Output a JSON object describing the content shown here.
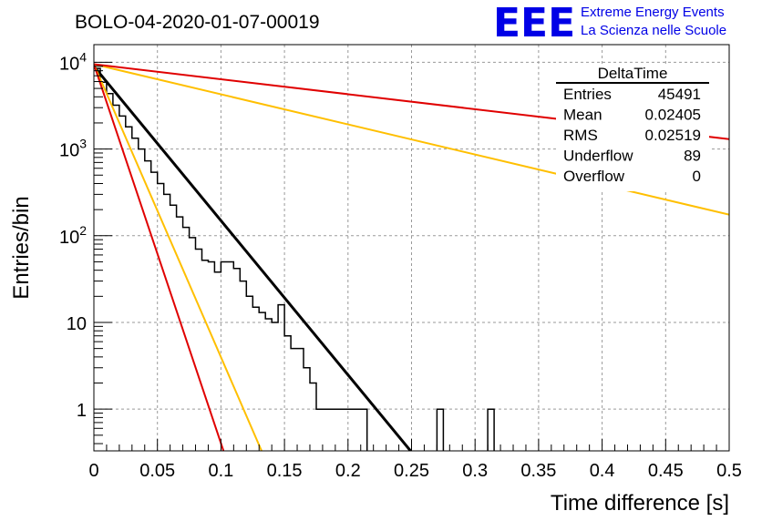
{
  "title": "BOLO-04-2020-01-07-00019",
  "logo": {
    "mark": "EEE",
    "line1": "Extreme Energy Events",
    "line2": "La Scienza nelle Scuole",
    "color": "#0000e6"
  },
  "stats": {
    "name": "DeltaTime",
    "rows": [
      {
        "label": "Entries",
        "value": "45491"
      },
      {
        "label": "Mean",
        "value": "0.02405"
      },
      {
        "label": "RMS",
        "value": "0.02519"
      },
      {
        "label": "Underflow",
        "value": "89"
      },
      {
        "label": "Overflow",
        "value": "0"
      }
    ]
  },
  "chart_data": {
    "type": "line",
    "title": "BOLO-04-2020-01-07-00019",
    "xlabel": "Time difference [s]",
    "ylabel": "Entries/bin",
    "xlim": [
      0,
      0.5
    ],
    "ylim": [
      0.33,
      16000
    ],
    "yscale": "log",
    "grid": true,
    "xticks": [
      {
        "v": 0,
        "label": "0"
      },
      {
        "v": 0.05,
        "label": "0.05"
      },
      {
        "v": 0.1,
        "label": "0.1"
      },
      {
        "v": 0.15,
        "label": "0.15"
      },
      {
        "v": 0.2,
        "label": "0.2"
      },
      {
        "v": 0.25,
        "label": "0.25"
      },
      {
        "v": 0.3,
        "label": "0.3"
      },
      {
        "v": 0.35,
        "label": "0.35"
      },
      {
        "v": 0.4,
        "label": "0.4"
      },
      {
        "v": 0.45,
        "label": "0.45"
      },
      {
        "v": 0.5,
        "label": "0.5"
      }
    ],
    "yticks": [
      {
        "v": 1,
        "label": "1"
      },
      {
        "v": 10,
        "label": "10"
      },
      {
        "v": 100,
        "label": "10",
        "exp": "2"
      },
      {
        "v": 1000,
        "label": "10",
        "exp": "3"
      },
      {
        "v": 10000,
        "label": "10",
        "exp": "4"
      }
    ],
    "histogram": {
      "bin_width": 0.005,
      "color": "#000000",
      "values": [
        8500,
        5900,
        4350,
        3200,
        2400,
        1800,
        1330,
        1000,
        730,
        540,
        400,
        300,
        225,
        165,
        125,
        95,
        70,
        52,
        50,
        38,
        50,
        50,
        42,
        30,
        20,
        15,
        13,
        11,
        10,
        16,
        7,
        5,
        5,
        3,
        2,
        1,
        1,
        1,
        1,
        1,
        1,
        1,
        1,
        0,
        0,
        0,
        0,
        0,
        0,
        0,
        0,
        0,
        0,
        0,
        1,
        0,
        0,
        0,
        0,
        0,
        0,
        0,
        1,
        0,
        0,
        0,
        0,
        0,
        0,
        0,
        0,
        0,
        0,
        0,
        0,
        0,
        0,
        0,
        0,
        0,
        0,
        0,
        0,
        0,
        0,
        0,
        0,
        0,
        0,
        0,
        0,
        0,
        0,
        0,
        0,
        0,
        0,
        0,
        0,
        0
      ]
    },
    "series": [
      {
        "color": "#000000",
        "x": [
          0,
          0.25
        ],
        "y": [
          9000,
          0.32
        ]
      },
      {
        "color": "#ffbf00",
        "x": [
          0,
          0.5
        ],
        "y": [
          9500,
          175
        ]
      },
      {
        "color": "#e00000",
        "x": [
          0,
          0.5
        ],
        "y": [
          9500,
          1300
        ]
      },
      {
        "color": "#ffbf00",
        "x": [
          0,
          0.132
        ],
        "y": [
          9500,
          0.33
        ]
      },
      {
        "color": "#e00000",
        "x": [
          0,
          0.102
        ],
        "y": [
          9500,
          0.33
        ]
      }
    ]
  }
}
